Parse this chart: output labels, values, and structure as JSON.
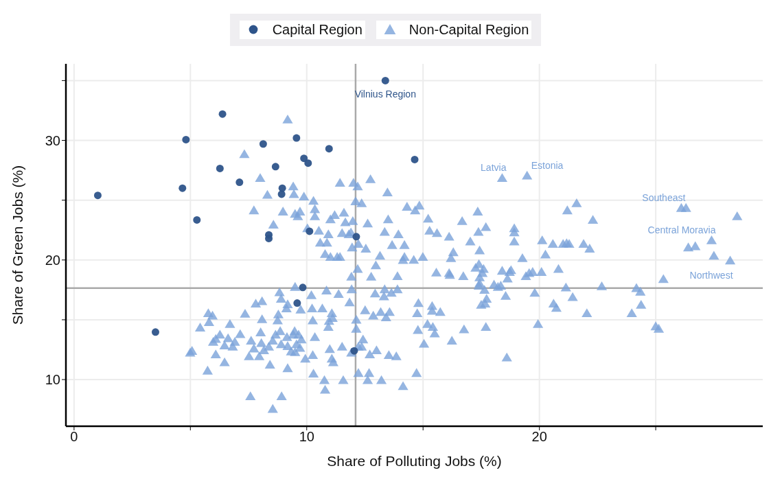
{
  "chart_data": {
    "type": "scatter",
    "xlabel": "Share of Polluting Jobs (%)",
    "ylabel": "Share of Green Jobs (%)",
    "xlim": [
      -0.35,
      29.6
    ],
    "ylim": [
      6.1,
      36.4
    ],
    "xticks": [
      0,
      {
        "value": 5,
        "label": null
      },
      10,
      {
        "value": 15,
        "label": null
      },
      20,
      {
        "value": 25,
        "label": null
      }
    ],
    "yticks": [
      10,
      {
        "value": 15,
        "label": null
      },
      20,
      {
        "value": 25,
        "label": null
      },
      30,
      {
        "value": 35,
        "label": null
      }
    ],
    "grid": true,
    "legend": "top",
    "ref_lines": [
      {
        "axis": "x",
        "value": 12.1,
        "color": "#a9a9a9"
      },
      {
        "axis": "y",
        "value": 17.65,
        "color": "#a9a9a9"
      }
    ],
    "annotations": [
      {
        "text": "Vilnius Region",
        "x": 13.38,
        "y": 35.0
      },
      {
        "text": "Estonia",
        "x": 19.47,
        "y": 27.0
      },
      {
        "text": "Latvia",
        "x": 18.4,
        "y": 26.8
      },
      {
        "text": "Southeast",
        "x": 26.1,
        "y": 24.3
      },
      {
        "text": "Central Moravia",
        "x": 27.4,
        "y": 21.6
      },
      {
        "text": "Northwest",
        "x": 28.2,
        "y": 19.9
      }
    ],
    "series": [
      {
        "name": "Capital Region",
        "color": "#2e548a",
        "marker": "circle",
        "x": [
          1.02,
          4.81,
          6.38,
          4.66,
          6.27,
          5.28,
          7.11,
          8.13,
          8.66,
          8.95,
          8.92,
          8.37,
          8.37,
          9.56,
          9.88,
          10.06,
          10.96,
          10.12,
          13.38,
          14.64,
          12.13,
          3.5,
          9.83,
          9.59,
          12.04
        ],
        "values": [
          25.4,
          30.06,
          32.2,
          26.0,
          27.65,
          23.35,
          26.5,
          29.7,
          27.8,
          26.0,
          25.5,
          22.1,
          21.8,
          30.2,
          28.5,
          28.1,
          29.3,
          22.4,
          35.0,
          28.4,
          21.95,
          13.97,
          17.7,
          16.4,
          12.4
        ]
      },
      {
        "name": "Non-Capital Region",
        "color": "#7ba3d9",
        "marker": "triangle",
        "x": [
          19.47,
          18.4,
          26.1,
          26.3,
          26.4,
          26.7,
          27.4,
          28.5,
          28.2,
          27.5,
          9.18,
          7.32,
          8.0,
          7.73,
          8.31,
          9.42,
          9.45,
          8.57,
          8.98,
          9.5,
          9.62,
          9.71,
          9.88,
          10.29,
          10.35,
          10.35,
          10.03,
          10.52,
          10.58,
          10.93,
          10.87,
          10.79,
          11.02,
          11.31,
          11.43,
          11.02,
          11.2,
          11.6,
          11.66,
          11.43,
          11.52,
          11.81,
          11.98,
          11.9,
          12.01,
          12.19,
          12.1,
          12.36,
          11.95,
          12.22,
          12.74,
          12.62,
          12.54,
          13.47,
          13.5,
          13.35,
          13.67,
          13.94,
          13.15,
          14.31,
          14.66,
          14.84,
          15.22,
          15.28,
          15.6,
          16.12,
          16.3,
          16.68,
          17.03,
          17.35,
          17.7,
          17.38,
          17.43,
          14.2,
          14.2,
          14.14,
          14.99,
          16.2,
          12.97,
          11.92,
          12.77,
          12.19,
          14.6,
          13.9,
          15.57,
          16.12,
          16.15,
          16.73,
          17.26,
          17.4,
          17.6,
          17.55,
          17.43,
          17.43,
          17.4,
          17.64,
          17.5,
          17.67,
          17.73,
          18.4,
          18.78,
          18.72,
          18.92,
          18.92,
          18.92,
          19.27,
          19.42,
          19.56,
          19.71,
          20.09,
          20.12,
          20.26,
          20.58,
          21.02,
          21.17,
          21.28,
          21.2,
          21.6,
          21.9,
          22.16,
          22.3,
          20.82,
          21.14,
          21.43,
          20.61,
          20.73,
          22.04,
          22.68,
          23.97,
          24.17,
          24.34,
          24.37,
          25.0,
          25.13,
          25.33,
          19.94,
          18.6,
          19.8,
          18.22,
          18.34,
          18.55,
          18.63,
          18.05,
          17.7,
          16.76,
          16.24,
          15.5,
          15.42,
          15.19,
          14.75,
          14.78,
          15.04,
          15.39,
          15.39,
          15.74,
          14.8,
          13.64,
          13.9,
          13.35,
          12.94,
          13.32,
          13.56,
          13.18,
          12.86,
          12.51,
          11.84,
          11.93,
          11.37,
          10.85,
          10.67,
          11.08,
          11.11,
          10.96,
          10.93,
          12.13,
          12.13,
          12.42,
          12.22,
          11.52,
          11.92,
          12.36,
          13.41,
          13.0,
          13.53,
          12.68,
          12.62,
          13.21,
          14.14,
          14.72,
          13.85,
          12.22,
          11.57,
          10.76,
          10.79,
          10.29,
          9.94,
          11.08,
          11.14,
          10.26,
          10.35,
          10.26,
          10.23,
          9.74,
          10.2,
          9.13,
          8.78,
          8.9,
          8.83,
          9.5,
          9.18,
          9.48,
          9.15,
          9.42,
          9.77,
          9.65,
          9.56,
          9.5,
          9.33,
          9.18,
          8.9,
          8.54,
          8.66,
          8.86,
          8.75,
          8.02,
          8.08,
          8.05,
          8.37,
          7.73,
          7.61,
          7.14,
          6.91,
          6.82,
          6.62,
          6.47,
          6.09,
          6.27,
          5.98,
          6.7,
          5.8,
          5.77,
          5.95,
          5.42,
          5.07,
          4.99,
          6.47,
          5.74,
          6.09,
          7.35,
          7.81,
          8.08,
          8.16,
          8.42,
          7.96,
          7.52,
          7.58,
          8.54,
          8.92,
          9.18,
          9.71,
          10.99,
          12.71
        ],
        "values": [
          27.0,
          26.8,
          24.3,
          24.3,
          21.0,
          21.1,
          21.6,
          23.6,
          19.9,
          20.3,
          31.7,
          28.8,
          26.8,
          24.1,
          25.4,
          26.1,
          25.45,
          22.9,
          24.0,
          23.8,
          23.6,
          24.0,
          25.25,
          24.9,
          24.2,
          23.6,
          22.6,
          22.4,
          21.4,
          22.1,
          21.4,
          20.45,
          20.2,
          20.2,
          20.2,
          23.35,
          23.7,
          23.9,
          23.1,
          26.4,
          22.2,
          22.1,
          23.2,
          22.25,
          26.4,
          26.1,
          24.85,
          24.7,
          21.0,
          21.3,
          26.7,
          23.0,
          20.9,
          25.6,
          23.35,
          22.3,
          21.2,
          22.1,
          20.3,
          24.4,
          24.1,
          24.5,
          23.4,
          22.4,
          22.2,
          21.9,
          20.6,
          23.2,
          21.5,
          24.0,
          22.7,
          22.3,
          20.75,
          21.2,
          20.2,
          19.95,
          20.2,
          20.1,
          19.5,
          18.55,
          18.55,
          19.2,
          19.96,
          18.6,
          18.9,
          18.85,
          18.7,
          18.6,
          19.3,
          19.6,
          19.2,
          18.85,
          18.5,
          18.0,
          17.8,
          17.45,
          16.2,
          16.3,
          16.7,
          19.05,
          19.1,
          18.95,
          22.6,
          22.25,
          21.5,
          20.1,
          18.6,
          18.85,
          18.95,
          18.95,
          21.6,
          20.4,
          21.3,
          21.3,
          21.35,
          21.3,
          24.1,
          24.7,
          21.3,
          20.9,
          23.3,
          19.2,
          17.65,
          16.85,
          16.3,
          15.95,
          15.5,
          17.75,
          15.5,
          17.6,
          17.3,
          16.2,
          14.4,
          14.2,
          18.35,
          14.6,
          11.8,
          17.2,
          17.7,
          17.8,
          16.95,
          18.4,
          17.9,
          14.35,
          14.15,
          13.2,
          13.8,
          14.35,
          14.6,
          15.5,
          14.1,
          12.95,
          16.1,
          15.7,
          15.6,
          16.35,
          17.2,
          17.5,
          17.5,
          17.15,
          16.9,
          15.6,
          15.6,
          15.3,
          15.75,
          16.4,
          17.5,
          17.1,
          17.4,
          15.9,
          15.5,
          15.1,
          14.85,
          14.35,
          14.95,
          14.2,
          13.3,
          12.7,
          12.7,
          12.2,
          12.7,
          15.15,
          12.4,
          12.0,
          10.5,
          9.9,
          9.9,
          9.4,
          10.5,
          11.9,
          10.5,
          9.9,
          9.9,
          9.1,
          10.45,
          11.7,
          11.7,
          11.4,
          12.0,
          13.5,
          14.9,
          15.9,
          15.8,
          17.0,
          15.9,
          15.4,
          16.7,
          17.25,
          17.7,
          16.25,
          14.0,
          13.5,
          13.7,
          13.3,
          13.7,
          12.9,
          12.25,
          12.3,
          12.75,
          12.9,
          13.2,
          13.7,
          14.0,
          14.9,
          13.9,
          15.0,
          13.0,
          12.7,
          12.55,
          13.2,
          13.75,
          13.1,
          12.7,
          13.4,
          12.8,
          13.35,
          13.7,
          13.1,
          14.6,
          14.75,
          15.5,
          15.3,
          14.3,
          12.35,
          12.2,
          11.4,
          10.7,
          12.05,
          15.45,
          16.3,
          16.5,
          12.4,
          11.2,
          11.9,
          11.9,
          8.55,
          7.5,
          8.55,
          10.9,
          12.6,
          12.5,
          12.05
        ]
      }
    ]
  }
}
